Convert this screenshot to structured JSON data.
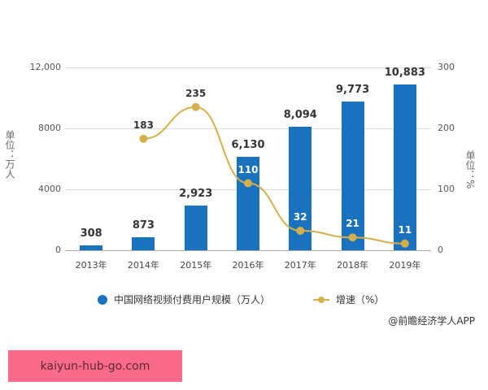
{
  "chart_data": {
    "type": "bar+line",
    "categories": [
      "2013年",
      "2014年",
      "2015年",
      "2016年",
      "2017年",
      "2018年",
      "2019年"
    ],
    "series": [
      {
        "name": "中国网络视频付费用户规模（万人）",
        "type": "bar",
        "axis": "left",
        "color": "#1a72bf",
        "values": [
          308,
          873,
          2923,
          6130,
          8094,
          9773,
          10883
        ],
        "labels": [
          "308",
          "873",
          "2,923",
          "6,130",
          "8,094",
          "9,773",
          "10,883"
        ]
      },
      {
        "name": "增速（%）",
        "type": "line",
        "axis": "right",
        "color": "#d4b04c",
        "values": [
          null,
          183,
          235,
          110,
          32,
          21,
          11
        ],
        "labels": [
          "",
          "183",
          "235",
          "110",
          "32",
          "21",
          "11"
        ]
      }
    ],
    "ylabel": "单位：万人",
    "y2label": "单位：%",
    "ylim": [
      0,
      12000
    ],
    "y2lim": [
      0,
      300
    ],
    "yticks": [
      "0",
      "4000",
      "8000",
      "12,000"
    ],
    "y2ticks": [
      "0",
      "100",
      "200",
      "300"
    ],
    "grid": true,
    "legend_position": "bottom"
  },
  "legend": {
    "bar": "中国网络视频付费用户规模（万人）",
    "line": "增速（%）"
  },
  "source": "@前瞻经济学人APP",
  "banner": "kaiyun-hub-go.com"
}
